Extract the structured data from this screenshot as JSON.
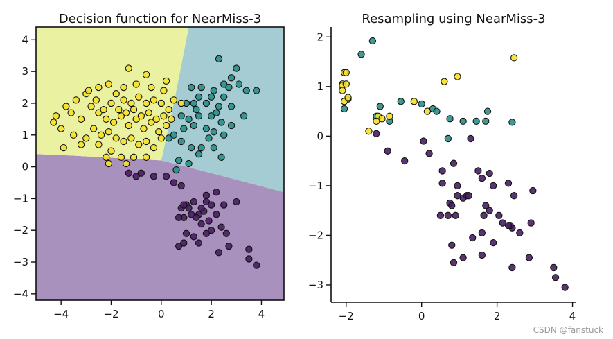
{
  "chart_data": [
    {
      "type": "scatter",
      "title": "Decision function for NearMiss-3",
      "xlim": [
        -5,
        4.9
      ],
      "ylim": [
        -4.2,
        4.4
      ],
      "xticks": [
        -4,
        -2,
        0,
        2,
        4
      ],
      "yticks": [
        -4,
        -3,
        -2,
        -1,
        0,
        1,
        2,
        3,
        4
      ],
      "grid": false,
      "legend": "none",
      "regions": [
        {
          "class": 0,
          "color": "#a991bd",
          "description": "lower region (below approx y=0.35 on left, sloping down to y=-0.8 at right)"
        },
        {
          "class": 1,
          "color": "#a5ccd3",
          "description": "upper-right region"
        },
        {
          "class": 2,
          "color": "#eaf2a1",
          "description": "upper-left region"
        }
      ],
      "series": [
        {
          "class": 0,
          "color": "#481f63",
          "points": [
            [
              -1.3,
              -0.2
            ],
            [
              -1,
              -0.3
            ],
            [
              -0.8,
              -0.2
            ],
            [
              -0.3,
              -0.3
            ],
            [
              0.2,
              -0.3
            ],
            [
              0.5,
              -0.5
            ],
            [
              0.8,
              -0.6
            ],
            [
              1.2,
              -1.5
            ],
            [
              0.8,
              -1.3
            ],
            [
              1,
              -1.2
            ],
            [
              1.5,
              -1.5
            ],
            [
              1.3,
              -1.1
            ],
            [
              1.1,
              -1.3
            ],
            [
              1.8,
              -1.1
            ],
            [
              0.9,
              -1.6
            ],
            [
              0.7,
              -1.6
            ],
            [
              1.6,
              -1.8
            ],
            [
              1.4,
              -1.6
            ],
            [
              1.7,
              -1.4
            ],
            [
              2,
              -1.2
            ],
            [
              2.2,
              -1.5
            ],
            [
              2.5,
              -1.2
            ],
            [
              3,
              -1.1
            ],
            [
              1.6,
              -1.3
            ],
            [
              1.9,
              -1.7
            ],
            [
              2,
              -2
            ],
            [
              2.4,
              -1.9
            ],
            [
              2.6,
              -2.1
            ],
            [
              1,
              -2.1
            ],
            [
              1.3,
              -2.2
            ],
            [
              0.9,
              -2.4
            ],
            [
              0.7,
              -2.5
            ],
            [
              1.5,
              -2.4
            ],
            [
              1.8,
              -2.1
            ],
            [
              2.3,
              -2.7
            ],
            [
              2.7,
              -2.5
            ],
            [
              3.5,
              -2.6
            ],
            [
              3.5,
              -2.9
            ],
            [
              3.8,
              -3.1
            ],
            [
              2.2,
              -0.8
            ],
            [
              1.8,
              -0.9
            ],
            [
              0.9,
              -1.2
            ]
          ]
        },
        {
          "class": 1,
          "color": "#2a8f8a",
          "points": [
            [
              2.3,
              3.4
            ],
            [
              3,
              3.1
            ],
            [
              2.8,
              2.8
            ],
            [
              2.5,
              2.6
            ],
            [
              3.1,
              2.6
            ],
            [
              2.7,
              2.5
            ],
            [
              2.1,
              2.4
            ],
            [
              1.6,
              2.5
            ],
            [
              1.2,
              2.5
            ],
            [
              1.5,
              2.2
            ],
            [
              2,
              2.2
            ],
            [
              2.5,
              2.2
            ],
            [
              3.4,
              2.4
            ],
            [
              1,
              2
            ],
            [
              1.3,
              2
            ],
            [
              1.8,
              2
            ],
            [
              2.3,
              1.9
            ],
            [
              2.8,
              1.9
            ],
            [
              3.3,
              1.6
            ],
            [
              0.8,
              1.6
            ],
            [
              1.1,
              1.5
            ],
            [
              1.5,
              1.6
            ],
            [
              2,
              1.6
            ],
            [
              2.4,
              1.4
            ],
            [
              2.8,
              1.3
            ],
            [
              0.9,
              1.2
            ],
            [
              1.3,
              1.3
            ],
            [
              1.8,
              1.2
            ],
            [
              2.1,
              1.1
            ],
            [
              2.5,
              1
            ],
            [
              0.5,
              1
            ],
            [
              0.8,
              0.8
            ],
            [
              1.2,
              0.6
            ],
            [
              1.6,
              0.6
            ],
            [
              2.1,
              0.6
            ],
            [
              2.4,
              0.3
            ],
            [
              0.7,
              0.2
            ],
            [
              1.1,
              0.1
            ],
            [
              0.6,
              -0.1
            ],
            [
              1.5,
              0.4
            ],
            [
              3.8,
              2.4
            ],
            [
              1.4,
              1.8
            ],
            [
              2.2,
              1.7
            ],
            [
              0.3,
              0.9
            ],
            [
              1.9,
              0.9
            ]
          ]
        },
        {
          "class": 2,
          "color": "#f5e02a",
          "points": [
            [
              -1.3,
              3.1
            ],
            [
              -0.6,
              2.9
            ],
            [
              0.1,
              2.4
            ],
            [
              -2.5,
              2.5
            ],
            [
              -3,
              2.3
            ],
            [
              -3.4,
              2.1
            ],
            [
              -3.8,
              1.9
            ],
            [
              -4.2,
              1.6
            ],
            [
              -4,
              1.2
            ],
            [
              -3.5,
              1
            ],
            [
              -3,
              0.9
            ],
            [
              -2.5,
              0.7
            ],
            [
              -2,
              0.5
            ],
            [
              -1.6,
              0.3
            ],
            [
              -1.1,
              0.3
            ],
            [
              -0.6,
              0.3
            ],
            [
              -2.2,
              0.3
            ],
            [
              -1.4,
              0.1
            ],
            [
              -2.1,
              0.1
            ],
            [
              -1.8,
              2.3
            ],
            [
              -1.5,
              2.1
            ],
            [
              -1.2,
              2
            ],
            [
              -0.9,
              2.2
            ],
            [
              -0.6,
              2
            ],
            [
              -0.3,
              2.1
            ],
            [
              0,
              2
            ],
            [
              0.3,
              1.8
            ],
            [
              -2.8,
              1.9
            ],
            [
              -2.5,
              1.7
            ],
            [
              -2.2,
              1.5
            ],
            [
              -1.9,
              1.4
            ],
            [
              -1.6,
              1.6
            ],
            [
              -1.3,
              1.3
            ],
            [
              -1,
              1.5
            ],
            [
              -0.7,
              1.2
            ],
            [
              -0.4,
              1.4
            ],
            [
              -0.1,
              1.1
            ],
            [
              0.2,
              1.3
            ],
            [
              -3.2,
              1.5
            ],
            [
              -2.7,
              1.2
            ],
            [
              -2.4,
              1
            ],
            [
              -2.1,
              1.1
            ],
            [
              -1.8,
              0.9
            ],
            [
              -1.5,
              0.8
            ],
            [
              -1.2,
              0.9
            ],
            [
              -0.9,
              0.7
            ],
            [
              -0.6,
              0.8
            ],
            [
              -0.3,
              0.6
            ],
            [
              0,
              0.9
            ],
            [
              0.4,
              1.5
            ],
            [
              -2,
              2
            ],
            [
              -1.7,
              1.8
            ],
            [
              -1.4,
              1.7
            ],
            [
              -1.1,
              1.8
            ],
            [
              -0.8,
              1.6
            ],
            [
              -0.5,
              1.7
            ],
            [
              -0.2,
              1.5
            ],
            [
              0.1,
              1.6
            ],
            [
              -2.6,
              2.1
            ],
            [
              -2.3,
              1.8
            ],
            [
              -3.6,
              1.7
            ],
            [
              -3.9,
              0.6
            ],
            [
              -4.3,
              1.4
            ],
            [
              -3.2,
              0.7
            ],
            [
              0.5,
              2.1
            ],
            [
              0.8,
              2
            ],
            [
              -1.5,
              2.5
            ],
            [
              -1,
              2.6
            ],
            [
              -0.4,
              2.5
            ],
            [
              0.2,
              2.7
            ],
            [
              -2.9,
              2.4
            ],
            [
              -2.1,
              2.6
            ]
          ]
        }
      ]
    },
    {
      "type": "scatter",
      "title": "Resampling using NearMiss-3",
      "xlim": [
        -2.4,
        4.1
      ],
      "ylim": [
        -3.35,
        2.2
      ],
      "xticks": [
        -2,
        0,
        2,
        4
      ],
      "yticks": [
        -3,
        -2,
        -1,
        0,
        1,
        2
      ],
      "grid": false,
      "legend": "none",
      "series": [
        {
          "class": 0,
          "color": "#481f63",
          "points": [
            [
              -1.2,
              0.05
            ],
            [
              -0.9,
              -0.3
            ],
            [
              -0.45,
              -0.5
            ],
            [
              0.05,
              -0.1
            ],
            [
              0.2,
              -0.35
            ],
            [
              0.55,
              -0.7
            ],
            [
              0.55,
              -0.95
            ],
            [
              0.85,
              -0.55
            ],
            [
              0.95,
              -1.0
            ],
            [
              1.3,
              -0.05
            ],
            [
              1.5,
              -0.7
            ],
            [
              1.6,
              -0.85
            ],
            [
              1.8,
              -0.75
            ],
            [
              1.9,
              -1.0
            ],
            [
              2.3,
              -0.95
            ],
            [
              2.45,
              -1.2
            ],
            [
              2.95,
              -1.1
            ],
            [
              0.95,
              -1.2
            ],
            [
              1.1,
              -1.25
            ],
            [
              1.2,
              -1.2
            ],
            [
              1.25,
              -1.2
            ],
            [
              0.75,
              -1.35
            ],
            [
              0.8,
              -1.4
            ],
            [
              1.7,
              -1.4
            ],
            [
              1.8,
              -1.5
            ],
            [
              2.05,
              -1.6
            ],
            [
              2.15,
              -1.75
            ],
            [
              2.4,
              -1.85
            ],
            [
              2.35,
              -1.8
            ],
            [
              0.5,
              -1.6
            ],
            [
              0.7,
              -1.6
            ],
            [
              0.9,
              -1.6
            ],
            [
              1.65,
              -1.6
            ],
            [
              0.8,
              -2.2
            ],
            [
              1.35,
              -2.05
            ],
            [
              1.6,
              -1.95
            ],
            [
              1.9,
              -2.15
            ],
            [
              2.6,
              -1.95
            ],
            [
              2.9,
              -1.75
            ],
            [
              2.3,
              -1.8
            ],
            [
              0.85,
              -2.55
            ],
            [
              1.1,
              -2.45
            ],
            [
              1.6,
              -2.4
            ],
            [
              2.4,
              -2.65
            ],
            [
              2.85,
              -2.45
            ],
            [
              3.5,
              -2.65
            ],
            [
              3.55,
              -2.85
            ],
            [
              3.8,
              -3.05
            ]
          ]
        },
        {
          "class": 1,
          "color": "#2a8f8a",
          "points": [
            [
              -1.6,
              1.65
            ],
            [
              -1.3,
              1.92
            ],
            [
              -1.95,
              0.75
            ],
            [
              -2.05,
              0.55
            ],
            [
              -1.1,
              0.6
            ],
            [
              -1.2,
              0.4
            ],
            [
              -0.85,
              0.3
            ],
            [
              -0.55,
              0.7
            ],
            [
              0,
              0.65
            ],
            [
              0.3,
              0.55
            ],
            [
              0.4,
              0.5
            ],
            [
              0.75,
              0.35
            ],
            [
              1.1,
              0.3
            ],
            [
              1.45,
              0.3
            ],
            [
              1.75,
              0.5
            ],
            [
              0.7,
              -0.05
            ],
            [
              1.7,
              0.3
            ],
            [
              2.4,
              0.28
            ]
          ]
        },
        {
          "class": 2,
          "color": "#f5e02a",
          "points": [
            [
              -2.05,
              1.28
            ],
            [
              -2.0,
              1.28
            ],
            [
              -2.1,
              1.05
            ],
            [
              -2.1,
              1.02
            ],
            [
              -2.0,
              1.05
            ],
            [
              -2.1,
              0.92
            ],
            [
              -2.05,
              0.7
            ],
            [
              -1.95,
              0.78
            ],
            [
              -1.15,
              0.4
            ],
            [
              -1.05,
              0.35
            ],
            [
              -0.85,
              0.4
            ],
            [
              -0.2,
              0.7
            ],
            [
              0.15,
              0.5
            ],
            [
              0.6,
              1.1
            ],
            [
              0.95,
              1.2
            ],
            [
              -1.4,
              0.1
            ],
            [
              -1.2,
              0.3
            ],
            [
              2.45,
              1.58
            ]
          ]
        }
      ]
    }
  ],
  "watermark": "CSDN @fanstuck"
}
